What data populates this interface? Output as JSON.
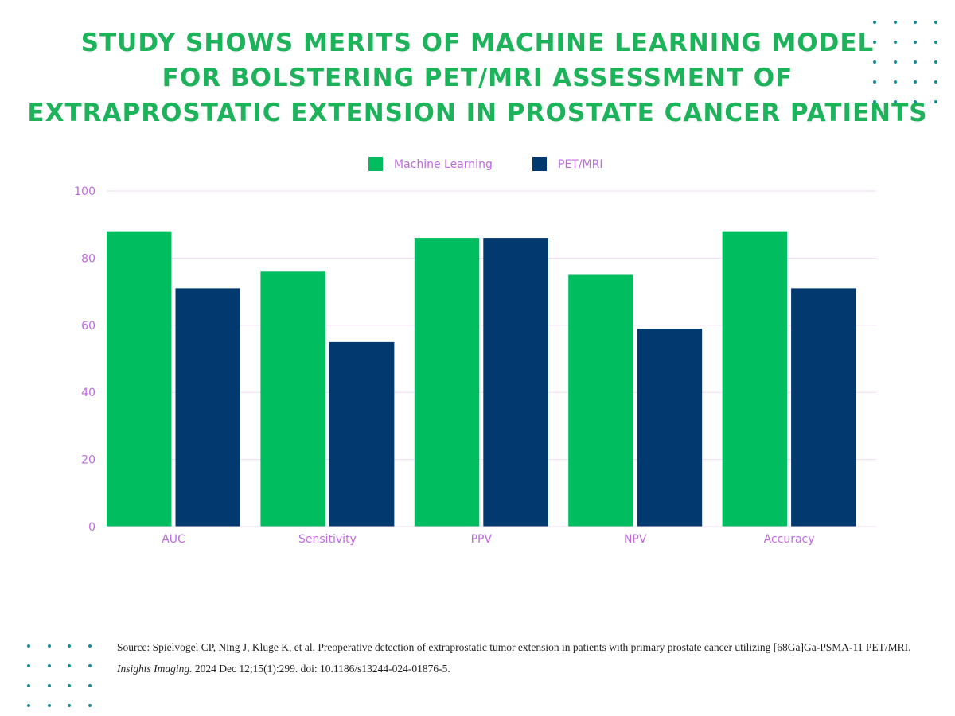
{
  "title_lines": [
    "STUDY SHOWS MERITS OF MACHINE LEARNING MODEL",
    "FOR BOLSTERING PET/MRI ASSESSMENT OF",
    "EXTRAPROSTATIC EXTENSION IN PROSTATE CANCER PATIENTS"
  ],
  "colors": {
    "title": "#1db35a",
    "accent_text": "#c06ae0",
    "grid": "#f2dcf3",
    "dots": "#1a8a96",
    "machine_learning": "#00be5f",
    "pet_mri": "#023a6f"
  },
  "chart_data": {
    "type": "bar",
    "categories": [
      "AUC",
      "Sensitivity",
      "PPV",
      "NPV",
      "Accuracy"
    ],
    "series": [
      {
        "name": "Machine Learning",
        "values": [
          88,
          76,
          86,
          75,
          88
        ]
      },
      {
        "name": "PET/MRI",
        "values": [
          71,
          55,
          86,
          59,
          71
        ]
      }
    ],
    "ylim": [
      0,
      100
    ],
    "yticks": [
      0,
      20,
      40,
      60,
      80,
      100
    ],
    "grid": true,
    "legend": "top-center"
  },
  "source": {
    "prefix": "Source: Spielvogel CP, Ning J, Kluge K, et al. Preoperative detection of extraprostatic tumor extension in patients with primary prostate cancer utilizing [68Ga]Ga-PSMA-11 PET/MRI. ",
    "journal": "Insights Imaging.",
    "suffix": " 2024 Dec 12;15(1):299. doi: 10.1186/s13244-024-01876-5."
  }
}
